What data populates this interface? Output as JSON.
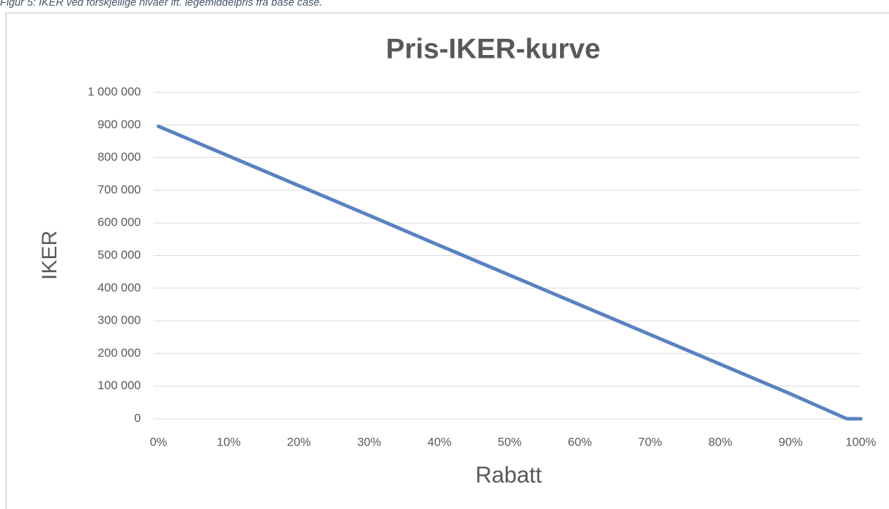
{
  "caption": "Figur 5: IKER ved forskjellige nivåer ift. legemiddelpris fra base case.",
  "chart_data": {
    "type": "line",
    "title": "Pris-IKER-kurve",
    "x_label": "Rabatt",
    "y_label": "IKER",
    "x": [
      0,
      10,
      20,
      30,
      40,
      50,
      60,
      70,
      80,
      90,
      98,
      100
    ],
    "series": [
      {
        "name": "IKER",
        "color": "#5882c1",
        "values": [
          896000,
          805000,
          714000,
          623000,
          531000,
          440000,
          349000,
          258000,
          167000,
          76000,
          0,
          0
        ]
      }
    ],
    "xlim": [
      0,
      100
    ],
    "xticks": [
      {
        "value": 0,
        "label": "0%"
      },
      {
        "value": 10,
        "label": "10%"
      },
      {
        "value": 20,
        "label": "20%"
      },
      {
        "value": 30,
        "label": "30%"
      },
      {
        "value": 40,
        "label": "40%"
      },
      {
        "value": 50,
        "label": "50%"
      },
      {
        "value": 60,
        "label": "60%"
      },
      {
        "value": 70,
        "label": "70%"
      },
      {
        "value": 80,
        "label": "80%"
      },
      {
        "value": 90,
        "label": "90%"
      },
      {
        "value": 100,
        "label": "100%"
      }
    ],
    "ylim": [
      0,
      1000000
    ],
    "yticks": [
      0,
      {
        "value": 100000,
        "label": "100 000"
      },
      {
        "value": 200000,
        "label": "200 000"
      },
      {
        "value": 300000,
        "label": "300 000"
      },
      {
        "value": 400000,
        "label": "400 000"
      },
      {
        "value": 500000,
        "label": "500 000"
      },
      {
        "value": 600000,
        "label": "600 000"
      },
      {
        "value": 700000,
        "label": "700 000"
      },
      {
        "value": 800000,
        "label": "800 000"
      },
      {
        "value": 900000,
        "label": "900 000"
      },
      {
        "value": 1000000,
        "label": "1 000 000"
      }
    ],
    "grid": true
  }
}
